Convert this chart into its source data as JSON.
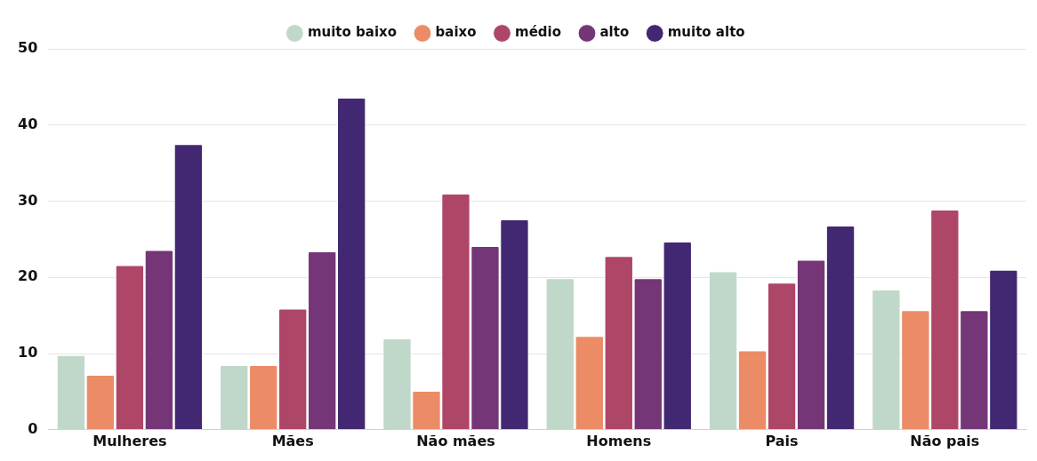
{
  "chart_data": {
    "type": "bar",
    "categories": [
      "Mulheres",
      "Mães",
      "Não mães",
      "Homens",
      "Pais",
      "Não pais"
    ],
    "series": [
      {
        "name": "muito baixo",
        "color": "#c0d8c9",
        "values": [
          9.8,
          8.5,
          12.0,
          19.9,
          20.8,
          18.4
        ]
      },
      {
        "name": "baixo",
        "color": "#eb8c66",
        "values": [
          7.2,
          8.5,
          5.1,
          12.3,
          10.4,
          15.7
        ]
      },
      {
        "name": "médio",
        "color": "#ae4668",
        "values": [
          21.6,
          15.9,
          31.0,
          22.8,
          19.3,
          28.9
        ]
      },
      {
        "name": "alto",
        "color": "#743676",
        "values": [
          23.6,
          23.4,
          24.1,
          19.9,
          22.3,
          15.7
        ]
      },
      {
        "name": "muito alto",
        "color": "#422872",
        "values": [
          37.5,
          43.6,
          27.6,
          24.7,
          26.8,
          21.0
        ]
      }
    ],
    "ylim": [
      0,
      50
    ],
    "yticks": [
      0,
      10,
      20,
      30,
      40,
      50
    ],
    "grid": "y",
    "legend": "top"
  }
}
